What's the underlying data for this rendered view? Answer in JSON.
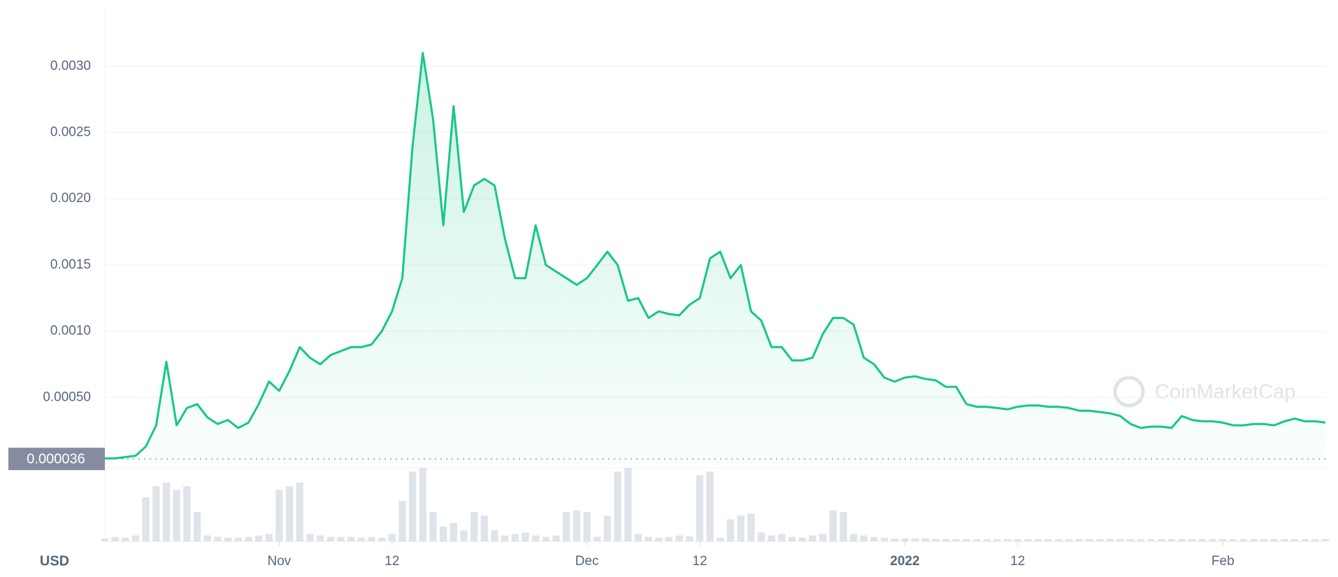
{
  "chart_data": {
    "type": "line",
    "x": [
      "2021-10-15",
      "2021-10-16",
      "2021-10-17",
      "2021-10-18",
      "2021-10-19",
      "2021-10-20",
      "2021-10-21",
      "2021-10-22",
      "2021-10-23",
      "2021-10-24",
      "2021-10-25",
      "2021-10-26",
      "2021-10-27",
      "2021-10-28",
      "2021-10-29",
      "2021-10-30",
      "2021-10-31",
      "2021-11-01",
      "2021-11-02",
      "2021-11-03",
      "2021-11-04",
      "2021-11-05",
      "2021-11-06",
      "2021-11-07",
      "2021-11-08",
      "2021-11-09",
      "2021-11-10",
      "2021-11-11",
      "2021-11-12",
      "2021-11-13",
      "2021-11-14",
      "2021-11-15",
      "2021-11-16",
      "2021-11-17",
      "2021-11-18",
      "2021-11-19",
      "2021-11-20",
      "2021-11-21",
      "2021-11-22",
      "2021-11-23",
      "2021-11-24",
      "2021-11-25",
      "2021-11-26",
      "2021-11-27",
      "2021-11-28",
      "2021-11-29",
      "2021-11-30",
      "2021-12-01",
      "2021-12-02",
      "2021-12-03",
      "2021-12-04",
      "2021-12-05",
      "2021-12-06",
      "2021-12-07",
      "2021-12-08",
      "2021-12-09",
      "2021-12-10",
      "2021-12-11",
      "2021-12-12",
      "2021-12-13",
      "2021-12-14",
      "2021-12-15",
      "2021-12-16",
      "2021-12-17",
      "2021-12-18",
      "2021-12-19",
      "2021-12-20",
      "2021-12-21",
      "2021-12-22",
      "2021-12-23",
      "2021-12-24",
      "2021-12-25",
      "2021-12-26",
      "2021-12-27",
      "2021-12-28",
      "2021-12-29",
      "2021-12-30",
      "2021-12-31",
      "2022-01-01",
      "2022-01-02",
      "2022-01-03",
      "2022-01-04",
      "2022-01-05",
      "2022-01-06",
      "2022-01-07",
      "2022-01-08",
      "2022-01-09",
      "2022-01-10",
      "2022-01-11",
      "2022-01-12",
      "2022-01-13",
      "2022-01-14",
      "2022-01-15",
      "2022-01-16",
      "2022-01-17",
      "2022-01-18",
      "2022-01-19",
      "2022-01-20",
      "2022-01-21",
      "2022-01-22",
      "2022-01-23",
      "2022-01-24",
      "2022-01-25",
      "2022-01-26",
      "2022-01-27",
      "2022-01-28",
      "2022-01-29",
      "2022-01-30",
      "2022-01-31",
      "2022-02-01",
      "2022-02-02",
      "2022-02-03",
      "2022-02-04",
      "2022-02-05",
      "2022-02-06",
      "2022-02-07",
      "2022-02-08",
      "2022-02-09",
      "2022-02-10",
      "2022-02-11"
    ],
    "series": [
      {
        "color": "#16c784",
        "values": [
          4e-05,
          4e-05,
          5e-05,
          6e-05,
          0.00013,
          0.00029,
          0.00077,
          0.00029,
          0.00042,
          0.00045,
          0.00035,
          0.0003,
          0.00033,
          0.00027,
          0.00031,
          0.00045,
          0.00062,
          0.00055,
          0.0007,
          0.00088,
          0.0008,
          0.00075,
          0.00082,
          0.00085,
          0.00088,
          0.00088,
          0.0009,
          0.001,
          0.00115,
          0.0014,
          0.0024,
          0.0031,
          0.0026,
          0.0018,
          0.0027,
          0.0019,
          0.0021,
          0.00215,
          0.0021,
          0.0017,
          0.0014,
          0.0014,
          0.0018,
          0.0015,
          0.00145,
          0.0014,
          0.00135,
          0.0014,
          0.0015,
          0.0016,
          0.0015,
          0.00123,
          0.00125,
          0.0011,
          0.00115,
          0.00113,
          0.00112,
          0.0012,
          0.00125,
          0.00155,
          0.0016,
          0.0014,
          0.0015,
          0.00115,
          0.00108,
          0.00088,
          0.00088,
          0.00078,
          0.00078,
          0.0008,
          0.00098,
          0.0011,
          0.0011,
          0.00105,
          0.0008,
          0.00075,
          0.00065,
          0.00062,
          0.00065,
          0.00066,
          0.00064,
          0.00063,
          0.00058,
          0.00058,
          0.00045,
          0.00043,
          0.00043,
          0.00042,
          0.00041,
          0.00043,
          0.00044,
          0.00044,
          0.00043,
          0.00043,
          0.00042,
          0.0004,
          0.0004,
          0.00039,
          0.00038,
          0.00036,
          0.0003,
          0.00027,
          0.00028,
          0.00028,
          0.00027,
          0.00036,
          0.00033,
          0.00032,
          0.00032,
          0.00031,
          0.00029,
          0.00029,
          0.0003,
          0.0003,
          0.00029,
          0.00032,
          0.00034,
          0.00032,
          0.00032,
          0.00031
        ]
      }
    ],
    "volume_values": [
      4,
      6,
      5,
      8,
      60,
      75,
      80,
      70,
      75,
      40,
      8,
      6,
      5,
      5,
      6,
      8,
      10,
      70,
      75,
      80,
      10,
      8,
      6,
      6,
      6,
      5,
      6,
      5,
      10,
      55,
      95,
      100,
      40,
      20,
      25,
      15,
      40,
      35,
      15,
      8,
      10,
      12,
      8,
      6,
      8,
      40,
      42,
      40,
      6,
      35,
      95,
      100,
      10,
      6,
      5,
      6,
      8,
      7,
      90,
      95,
      5,
      30,
      35,
      38,
      12,
      8,
      10,
      6,
      5,
      8,
      10,
      42,
      40,
      10,
      8,
      6,
      5,
      4,
      4,
      4,
      4,
      3,
      3,
      3,
      3,
      3,
      3,
      3,
      3,
      3,
      3,
      3,
      3,
      3,
      3,
      3,
      3,
      3,
      3,
      3,
      3,
      3,
      3,
      3,
      3,
      3,
      3,
      3,
      3,
      3,
      3,
      3,
      3,
      3,
      3,
      3,
      3,
      3,
      3,
      3
    ],
    "volume_ylim": [
      0,
      100
    ],
    "ylim": [
      0,
      0.0034
    ],
    "yticks": [
      {
        "value": 0.0005,
        "label": "0.00050"
      },
      {
        "value": 0.001,
        "label": "0.0010"
      },
      {
        "value": 0.0015,
        "label": "0.0015"
      },
      {
        "value": 0.002,
        "label": "0.0020"
      },
      {
        "value": 0.0025,
        "label": "0.0025"
      },
      {
        "value": 0.003,
        "label": "0.0030"
      }
    ],
    "xticks": [
      {
        "value": "2021-11-01",
        "label": "Nov"
      },
      {
        "value": "2021-11-12",
        "label": "12"
      },
      {
        "value": "2021-12-01",
        "label": "Dec"
      },
      {
        "value": "2021-12-12",
        "label": "12"
      },
      {
        "value": "2022-01-01",
        "label": "2022"
      },
      {
        "value": "2022-01-12",
        "label": "12"
      },
      {
        "value": "2022-02-01",
        "label": "Feb"
      }
    ],
    "baseline": {
      "value": 3.6e-05,
      "label": "0.000036"
    },
    "currency": "USD",
    "watermark": "CoinMarketCap",
    "grid": true
  }
}
